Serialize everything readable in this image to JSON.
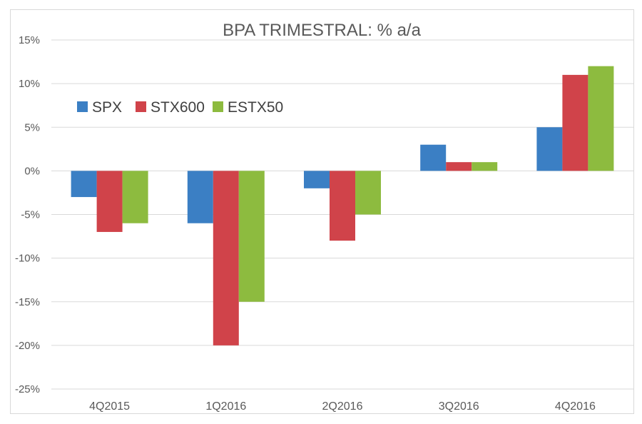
{
  "chart_data": {
    "type": "bar",
    "title": "BPA TRIMESTRAL: % a/a",
    "categories": [
      "4Q2015",
      "1Q2016",
      "2Q2016",
      "3Q2016",
      "4Q2016"
    ],
    "series": [
      {
        "name": "SPX",
        "color": "#3b7fc4",
        "values": [
          -3,
          -6,
          -2,
          3,
          5
        ]
      },
      {
        "name": "STX600",
        "color": "#d0434a",
        "values": [
          -7,
          -20,
          -8,
          1,
          11
        ]
      },
      {
        "name": "ESTX50",
        "color": "#8dbb3f",
        "values": [
          -6,
          -15,
          -5,
          1,
          12
        ]
      }
    ],
    "ylim": [
      -25,
      15
    ],
    "yticks": [
      15,
      10,
      5,
      0,
      -5,
      -10,
      -15,
      -20,
      -25
    ],
    "ytick_labels": [
      "15%",
      "10%",
      "5%",
      "0%",
      "-5%",
      "-10%",
      "-15%",
      "-20%",
      "-25%"
    ],
    "xlabel": "",
    "ylabel": "",
    "grid": true,
    "legend_position": "top-left"
  }
}
